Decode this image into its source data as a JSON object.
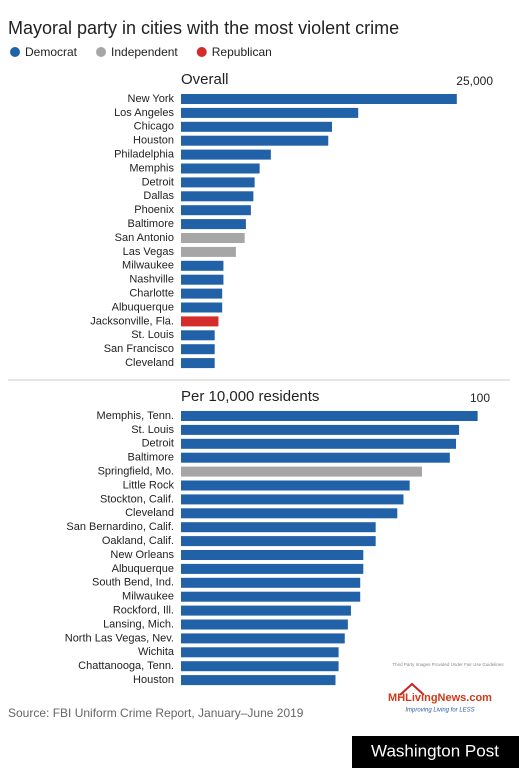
{
  "title": "Mayoral party in cities with the most violent crime",
  "legend": [
    {
      "name": "Democrat",
      "color": "#2161a8"
    },
    {
      "name": "Independent",
      "color": "#a6a6a6"
    },
    {
      "name": "Republican",
      "color": "#d42b2b"
    }
  ],
  "chart_data": [
    {
      "type": "bar",
      "orientation": "horizontal",
      "title": "Overall",
      "categories": [
        "New York",
        "Los Angeles",
        "Chicago",
        "Houston",
        "Philadelphia",
        "Memphis",
        "Detroit",
        "Dallas",
        "Phoenix",
        "Baltimore",
        "San Antonio",
        "Las Vegas",
        "Milwaukee",
        "Nashville",
        "Charlotte",
        "Albuquerque",
        "Jacksonville, Fla.",
        "St. Louis",
        "San Francisco",
        "Cleveland"
      ],
      "values": [
        22100,
        14200,
        12100,
        11800,
        7200,
        6300,
        5900,
        5800,
        5600,
        5200,
        5100,
        4400,
        3400,
        3400,
        3300,
        3300,
        3000,
        2700,
        2700,
        2700
      ],
      "bar_colors": [
        "#2161a8",
        "#2161a8",
        "#2161a8",
        "#2161a8",
        "#2161a8",
        "#2161a8",
        "#2161a8",
        "#2161a8",
        "#2161a8",
        "#2161a8",
        "#a6a6a6",
        "#a6a6a6",
        "#2161a8",
        "#2161a8",
        "#2161a8",
        "#2161a8",
        "#d42b2b",
        "#2161a8",
        "#2161a8",
        "#2161a8"
      ],
      "xlim": [
        0,
        25000
      ],
      "xticks": [
        {
          "value": 25000,
          "label": "25,000"
        }
      ]
    },
    {
      "type": "bar",
      "orientation": "horizontal",
      "title": "Per 10,000 residents",
      "categories": [
        "Memphis, Tenn.",
        "St. Louis",
        "Detroit",
        "Baltimore",
        "Springfield, Mo.",
        "Little Rock",
        "Stockton, Calif.",
        "Cleveland",
        "San Bernardino, Calif.",
        "Oakland, Calif.",
        "New Orleans",
        "Albuquerque",
        "South Bend, Ind.",
        "Milwaukee",
        "Rockford, Ill.",
        "Lansing, Mich.",
        "North Las Vegas, Nev.",
        "Wichita",
        "Chattanooga, Tenn.",
        "Houston"
      ],
      "values": [
        96,
        90,
        89,
        87,
        78,
        74,
        72,
        70,
        63,
        63,
        59,
        59,
        58,
        58,
        55,
        54,
        53,
        51,
        51,
        50
      ],
      "bar_colors": [
        "#2161a8",
        "#2161a8",
        "#2161a8",
        "#2161a8",
        "#a6a6a6",
        "#2161a8",
        "#2161a8",
        "#2161a8",
        "#2161a8",
        "#2161a8",
        "#2161a8",
        "#2161a8",
        "#2161a8",
        "#2161a8",
        "#2161a8",
        "#2161a8",
        "#2161a8",
        "#2161a8",
        "#2161a8",
        "#2161a8"
      ],
      "xlim": [
        0,
        100
      ],
      "xticks": [
        100
      ]
    }
  ],
  "source": "Source: FBI Uniform Crime Report, January–June 2019",
  "watermark": "Third Party Images Provided Under Fair Use Guidelines",
  "logo": {
    "name": "MHLivingNews.com",
    "tagline": "Improving Living for LESS"
  },
  "credit": "Washington Post"
}
